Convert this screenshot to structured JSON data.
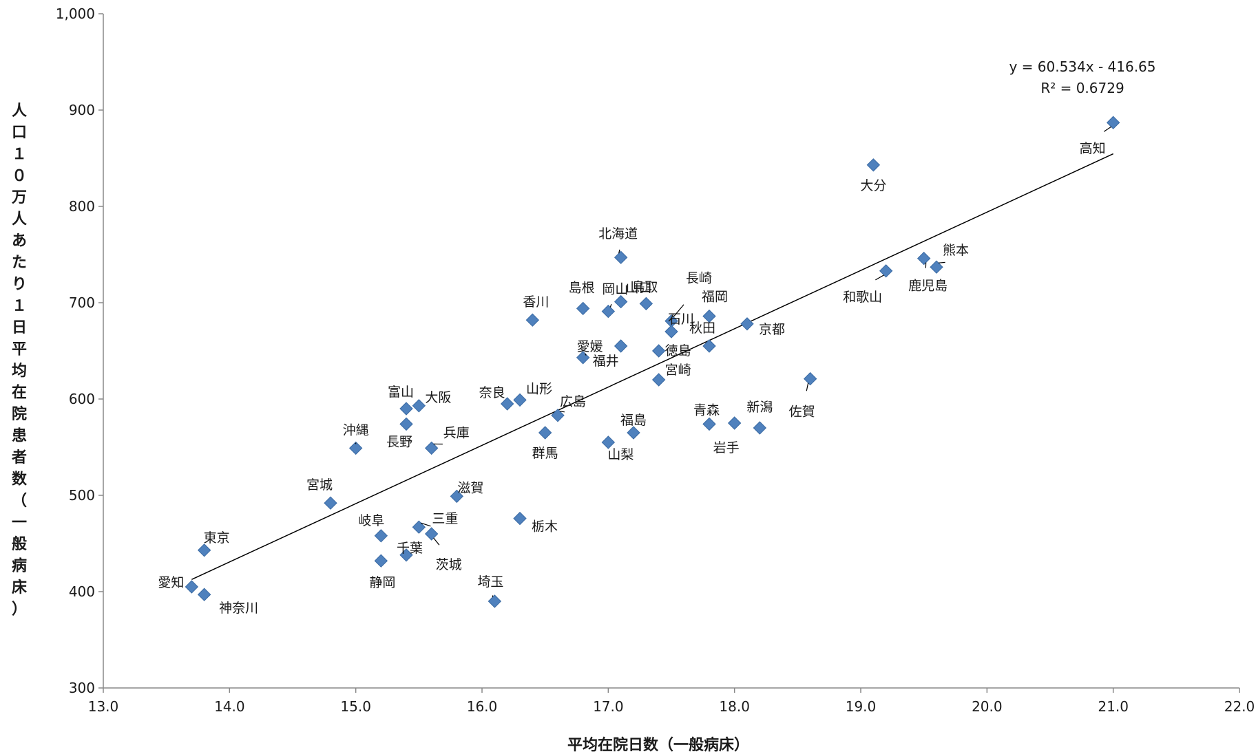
{
  "chart_data": {
    "type": "scatter",
    "title": "",
    "xlabel": "平均在院日数（一般病床）",
    "ylabel": "人口１０万人あたり１日平均在院患者数（一般病床）",
    "xlim": [
      13.0,
      22.0
    ],
    "ylim": [
      300,
      1000
    ],
    "x_ticks": [
      "13.0",
      "14.0",
      "15.0",
      "16.0",
      "17.0",
      "18.0",
      "19.0",
      "20.0",
      "21.0",
      "22.0"
    ],
    "y_ticks": [
      "300",
      "400",
      "500",
      "600",
      "700",
      "800",
      "900",
      "1,000"
    ],
    "grid": false,
    "legend": "none",
    "marker_color": "#4f81bd",
    "trendline": {
      "equation": "y = 60.534x - 416.65",
      "r2": "R² = 0.6729",
      "slope": 60.534,
      "intercept": -416.65,
      "x_range": [
        13.7,
        21.0
      ]
    },
    "points": [
      {
        "label": "愛知",
        "x": 13.7,
        "y": 405
      },
      {
        "label": "東京",
        "x": 13.8,
        "y": 443
      },
      {
        "label": "神奈川",
        "x": 13.8,
        "y": 397
      },
      {
        "label": "宮城",
        "x": 14.8,
        "y": 492
      },
      {
        "label": "沖縄",
        "x": 15.0,
        "y": 549
      },
      {
        "label": "岐阜",
        "x": 15.2,
        "y": 458
      },
      {
        "label": "静岡",
        "x": 15.2,
        "y": 432
      },
      {
        "label": "富山",
        "x": 15.4,
        "y": 590
      },
      {
        "label": "長野",
        "x": 15.4,
        "y": 574
      },
      {
        "label": "千葉",
        "x": 15.4,
        "y": 438
      },
      {
        "label": "大阪",
        "x": 15.5,
        "y": 593
      },
      {
        "label": "三重",
        "x": 15.5,
        "y": 467
      },
      {
        "label": "兵庫",
        "x": 15.6,
        "y": 549
      },
      {
        "label": "茨城",
        "x": 15.6,
        "y": 460
      },
      {
        "label": "滋賀",
        "x": 15.8,
        "y": 499
      },
      {
        "label": "埼玉",
        "x": 16.1,
        "y": 390
      },
      {
        "label": "奈良",
        "x": 16.2,
        "y": 595
      },
      {
        "label": "山形",
        "x": 16.3,
        "y": 599
      },
      {
        "label": "栃木",
        "x": 16.3,
        "y": 476
      },
      {
        "label": "香川",
        "x": 16.4,
        "y": 682
      },
      {
        "label": "群馬",
        "x": 16.5,
        "y": 565
      },
      {
        "label": "広島",
        "x": 16.6,
        "y": 583
      },
      {
        "label": "島根",
        "x": 16.8,
        "y": 694
      },
      {
        "label": "愛媛",
        "x": 16.8,
        "y": 643
      },
      {
        "label": "岡山",
        "x": 17.0,
        "y": 691
      },
      {
        "label": "山梨",
        "x": 17.0,
        "y": 555
      },
      {
        "label": "北海道",
        "x": 17.1,
        "y": 747
      },
      {
        "label": "山口",
        "x": 17.1,
        "y": 701
      },
      {
        "label": "福井",
        "x": 17.1,
        "y": 655
      },
      {
        "label": "福島",
        "x": 17.2,
        "y": 565
      },
      {
        "label": "鳥取",
        "x": 17.3,
        "y": 699
      },
      {
        "label": "徳島",
        "x": 17.4,
        "y": 650
      },
      {
        "label": "宮崎",
        "x": 17.4,
        "y": 620
      },
      {
        "label": "長崎",
        "x": 17.5,
        "y": 681
      },
      {
        "label": "石川",
        "x": 17.5,
        "y": 670
      },
      {
        "label": "福岡",
        "x": 17.8,
        "y": 686
      },
      {
        "label": "秋田",
        "x": 17.8,
        "y": 655
      },
      {
        "label": "青森",
        "x": 17.8,
        "y": 574
      },
      {
        "label": "岩手",
        "x": 18.0,
        "y": 575
      },
      {
        "label": "京都",
        "x": 18.1,
        "y": 678
      },
      {
        "label": "新潟",
        "x": 18.2,
        "y": 570
      },
      {
        "label": "佐賀",
        "x": 18.6,
        "y": 621
      },
      {
        "label": "大分",
        "x": 19.1,
        "y": 843
      },
      {
        "label": "和歌山",
        "x": 19.2,
        "y": 733
      },
      {
        "label": "鹿児島",
        "x": 19.5,
        "y": 746
      },
      {
        "label": "熊本",
        "x": 19.6,
        "y": 737
      },
      {
        "label": "高知",
        "x": 21.0,
        "y": 887
      }
    ]
  }
}
